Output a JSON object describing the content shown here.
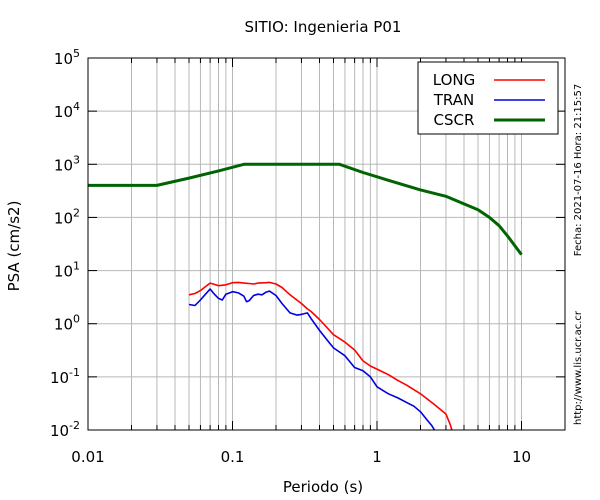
{
  "chart_data": {
    "type": "line",
    "title": "SITIO: Ingenieria P01",
    "xlabel": "Periodo (s)",
    "ylabel": "PSA (cm/s2)",
    "xscale": "log",
    "yscale": "log",
    "xlim": [
      0.01,
      20
    ],
    "ylim": [
      0.01,
      100000
    ],
    "grid": true,
    "legend_position": "top-right",
    "x_ticks": [
      {
        "value": 0.01,
        "label": "0.01"
      },
      {
        "value": 0.1,
        "label": "0.1"
      },
      {
        "value": 1,
        "label": "1"
      },
      {
        "value": 10,
        "label": "10"
      }
    ],
    "y_ticks": [
      {
        "value": 0.01,
        "base": "10",
        "exp": "-2"
      },
      {
        "value": 0.1,
        "base": "10",
        "exp": "-1"
      },
      {
        "value": 1,
        "base": "10",
        "exp": "0"
      },
      {
        "value": 10,
        "base": "10",
        "exp": "1"
      },
      {
        "value": 100,
        "base": "10",
        "exp": "2"
      },
      {
        "value": 1000,
        "base": "10",
        "exp": "3"
      },
      {
        "value": 10000,
        "base": "10",
        "exp": "4"
      },
      {
        "value": 100000,
        "base": "10",
        "exp": "5"
      }
    ],
    "series": [
      {
        "name": "LONG",
        "color": "#ff0000",
        "points": [
          [
            0.05,
            3.5
          ],
          [
            0.055,
            3.7
          ],
          [
            0.06,
            4.2
          ],
          [
            0.065,
            5.0
          ],
          [
            0.07,
            5.8
          ],
          [
            0.075,
            5.5
          ],
          [
            0.08,
            5.2
          ],
          [
            0.09,
            5.4
          ],
          [
            0.1,
            5.9
          ],
          [
            0.11,
            6.0
          ],
          [
            0.12,
            5.8
          ],
          [
            0.13,
            5.7
          ],
          [
            0.14,
            5.6
          ],
          [
            0.15,
            5.8
          ],
          [
            0.17,
            5.9
          ],
          [
            0.18,
            6.0
          ],
          [
            0.2,
            5.6
          ],
          [
            0.22,
            4.8
          ],
          [
            0.25,
            3.5
          ],
          [
            0.3,
            2.4
          ],
          [
            0.33,
            1.9
          ],
          [
            0.35,
            1.7
          ],
          [
            0.4,
            1.2
          ],
          [
            0.45,
            0.85
          ],
          [
            0.5,
            0.62
          ],
          [
            0.6,
            0.45
          ],
          [
            0.7,
            0.32
          ],
          [
            0.8,
            0.2
          ],
          [
            0.9,
            0.16
          ],
          [
            1.0,
            0.14
          ],
          [
            1.2,
            0.11
          ],
          [
            1.4,
            0.085
          ],
          [
            1.6,
            0.07
          ],
          [
            2.0,
            0.048
          ],
          [
            2.5,
            0.03
          ],
          [
            3.0,
            0.02
          ],
          [
            3.2,
            0.013
          ],
          [
            3.3,
            0.01
          ]
        ]
      },
      {
        "name": "TRAN",
        "color": "#0000e0",
        "points": [
          [
            0.05,
            2.3
          ],
          [
            0.055,
            2.2
          ],
          [
            0.06,
            2.8
          ],
          [
            0.065,
            3.6
          ],
          [
            0.07,
            4.5
          ],
          [
            0.075,
            3.6
          ],
          [
            0.08,
            3.0
          ],
          [
            0.085,
            2.8
          ],
          [
            0.09,
            3.6
          ],
          [
            0.1,
            4.0
          ],
          [
            0.11,
            3.8
          ],
          [
            0.12,
            3.3
          ],
          [
            0.125,
            2.6
          ],
          [
            0.13,
            2.7
          ],
          [
            0.14,
            3.4
          ],
          [
            0.15,
            3.6
          ],
          [
            0.16,
            3.5
          ],
          [
            0.17,
            3.9
          ],
          [
            0.18,
            4.1
          ],
          [
            0.2,
            3.4
          ],
          [
            0.22,
            2.4
          ],
          [
            0.25,
            1.6
          ],
          [
            0.28,
            1.45
          ],
          [
            0.3,
            1.5
          ],
          [
            0.33,
            1.6
          ],
          [
            0.35,
            1.25
          ],
          [
            0.4,
            0.75
          ],
          [
            0.45,
            0.5
          ],
          [
            0.5,
            0.35
          ],
          [
            0.6,
            0.25
          ],
          [
            0.7,
            0.15
          ],
          [
            0.8,
            0.13
          ],
          [
            0.9,
            0.1
          ],
          [
            1.0,
            0.065
          ],
          [
            1.2,
            0.048
          ],
          [
            1.4,
            0.04
          ],
          [
            1.6,
            0.033
          ],
          [
            1.8,
            0.028
          ],
          [
            2.0,
            0.022
          ],
          [
            2.2,
            0.016
          ],
          [
            2.4,
            0.012
          ],
          [
            2.5,
            0.01
          ]
        ]
      },
      {
        "name": "CSCR",
        "color": "#006400",
        "points": [
          [
            0.01,
            400
          ],
          [
            0.03,
            400
          ],
          [
            0.05,
            550
          ],
          [
            0.08,
            750
          ],
          [
            0.12,
            1000
          ],
          [
            0.2,
            1000
          ],
          [
            0.55,
            1000
          ],
          [
            0.8,
            700
          ],
          [
            1.2,
            500
          ],
          [
            2.0,
            330
          ],
          [
            3.0,
            250
          ],
          [
            4.0,
            180
          ],
          [
            5.0,
            140
          ],
          [
            6.0,
            100
          ],
          [
            7.0,
            70
          ],
          [
            8.0,
            45
          ],
          [
            10.0,
            20
          ]
        ]
      }
    ]
  },
  "side_labels": {
    "date": "Fecha: 2021-07-16 Hora: 21:15:57",
    "url": "http://www.lis.ucr.ac.cr"
  }
}
